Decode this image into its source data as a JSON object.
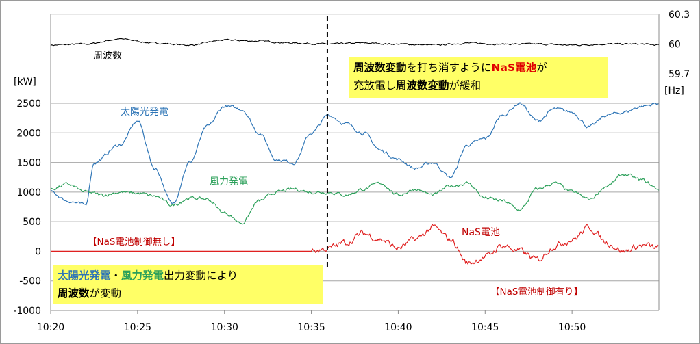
{
  "chart_data": {
    "type": "line",
    "x_ticks": [
      "10:20",
      "10:25",
      "10:30",
      "10:35",
      "10:40",
      "10:45",
      "10:50"
    ],
    "x_range": [
      "10:20",
      "10:55"
    ],
    "y_left": {
      "unit_label": "[kW]",
      "ylim": [
        -1000,
        2500
      ],
      "ticks": [
        "2500",
        "2000",
        "1500",
        "1000",
        "500",
        "0",
        "-500",
        "-1000"
      ]
    },
    "y_right": {
      "unit_label": "[Hz]",
      "ylim": [
        59.7,
        60.3
      ],
      "ticks": [
        "60.3",
        "60",
        "59.7"
      ]
    },
    "grid": true,
    "marker_time": "10:36",
    "series": [
      {
        "name": "周波数",
        "axis": "right",
        "color": "#000000",
        "x": [
          "10:20",
          "10:22",
          "10:24",
          "10:26",
          "10:28",
          "10:30",
          "10:32",
          "10:34",
          "10:36",
          "10:38",
          "10:40",
          "10:42",
          "10:44",
          "10:46",
          "10:48",
          "10:50",
          "10:52",
          "10:54",
          "10:55"
        ],
        "y": [
          59.99,
          60.0,
          60.05,
          60.01,
          59.99,
          60.04,
          60.03,
          60.01,
          60.0,
          60.01,
          60.0,
          59.99,
          60.01,
          60.0,
          60.0,
          59.99,
          60.0,
          60.0,
          59.99
        ]
      },
      {
        "name": "太陽光発電",
        "axis": "left",
        "color": "#2E75B6",
        "x": [
          "10:20",
          "10:21",
          "10:22",
          "10:22.5",
          "10:24",
          "10:25",
          "10:26",
          "10:27",
          "10:28",
          "10:29",
          "10:30",
          "10:31",
          "10:32",
          "10:33",
          "10:34",
          "10:35",
          "10:36",
          "10:37",
          "10:38",
          "10:39",
          "10:40",
          "10:41",
          "10:42",
          "10:43",
          "10:44",
          "10:45",
          "10:46",
          "10:47",
          "10:48",
          "10:49",
          "10:50",
          "10:51",
          "10:52",
          "10:53",
          "10:54",
          "10:55"
        ],
        "y": [
          1000,
          850,
          780,
          1500,
          1800,
          2200,
          1400,
          800,
          1500,
          2100,
          2450,
          2400,
          2000,
          1550,
          1500,
          2000,
          2300,
          2150,
          2000,
          1700,
          1550,
          1400,
          1500,
          1250,
          1800,
          1900,
          2300,
          2500,
          2200,
          2400,
          2350,
          2100,
          2300,
          2350,
          2450,
          2500
        ]
      },
      {
        "name": "風力発電",
        "axis": "left",
        "color": "#2CA05A",
        "x": [
          "10:20",
          "10:21",
          "10:22",
          "10:23",
          "10:24",
          "10:25",
          "10:26",
          "10:27",
          "10:28",
          "10:29",
          "10:30",
          "10:31",
          "10:32",
          "10:33",
          "10:34",
          "10:35",
          "10:36",
          "10:37",
          "10:38",
          "10:39",
          "10:40",
          "10:41",
          "10:42",
          "10:43",
          "10:44",
          "10:45",
          "10:46",
          "10:47",
          "10:48",
          "10:49",
          "10:50",
          "10:51",
          "10:52",
          "10:53",
          "10:54",
          "10:55"
        ],
        "y": [
          1050,
          1130,
          1000,
          950,
          1000,
          980,
          930,
          780,
          900,
          880,
          650,
          480,
          850,
          1000,
          1050,
          1000,
          1000,
          950,
          1050,
          1150,
          950,
          1050,
          950,
          1100,
          1150,
          900,
          850,
          700,
          1050,
          1150,
          1000,
          880,
          1100,
          1300,
          1200,
          1050
        ]
      },
      {
        "name": "NaS電池",
        "axis": "left",
        "color": "#E02020",
        "x": [
          "10:20",
          "10:35",
          "10:36",
          "10:37",
          "10:38",
          "10:39",
          "10:40",
          "10:41",
          "10:42",
          "10:43",
          "10:44",
          "10:45",
          "10:46",
          "10:47",
          "10:48",
          "10:49",
          "10:50",
          "10:51",
          "10:52",
          "10:53",
          "10:54",
          "10:55"
        ],
        "y": [
          0,
          0,
          50,
          150,
          300,
          200,
          50,
          200,
          400,
          200,
          -200,
          -100,
          100,
          0,
          -150,
          100,
          200,
          400,
          150,
          0,
          100,
          50
        ]
      }
    ]
  },
  "axis_labels": {
    "left": "[kW]",
    "right": "[Hz]"
  },
  "annotations": {
    "freq_label": "周波数",
    "solar_label": "太陽光発電",
    "wind_label": "風力発電",
    "nas_label": "NaS電池",
    "nas_off": "【NaS電池制御無し】",
    "nas_on": "【NaS電池制御有り】"
  },
  "callout_top": {
    "l1_p1": "周波数変動",
    "l1_p2": "を打ち消すように",
    "l1_p3": "NaS電池",
    "l1_p4": "が",
    "l2_p1": "充放電し",
    "l2_p2": "周波数変動",
    "l2_p3": "が緩和"
  },
  "callout_bottom": {
    "l1_p1": "太陽光発電",
    "l1_p2": "・",
    "l1_p3": "風力発電",
    "l1_p4": "出力変動により",
    "l2_p1": "周波数",
    "l2_p2": "が変動"
  },
  "colors": {
    "solar": "#2E75B6",
    "wind": "#2CA05A",
    "nas": "#E02020",
    "freq": "#000000",
    "callout_bg": "#ffff66",
    "nas_text": "#C00000"
  }
}
